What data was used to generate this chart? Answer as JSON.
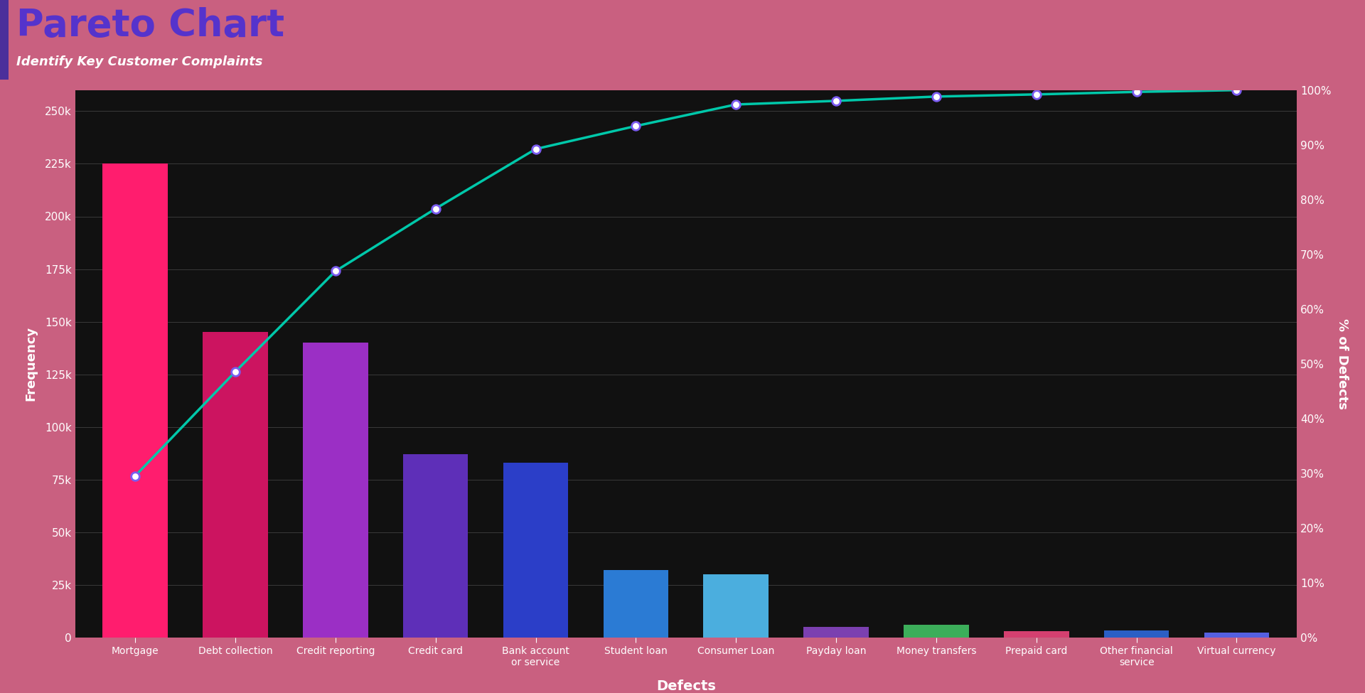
{
  "categories": [
    "Mortgage",
    "Debt collection",
    "Credit reporting",
    "Credit card",
    "Bank account\nor service",
    "Student loan",
    "Consumer Loan",
    "Payday loan",
    "Money transfers",
    "Prepaid card",
    "Other financial\nservice",
    "Virtual currency"
  ],
  "values": [
    225000,
    145000,
    140000,
    87000,
    83000,
    32000,
    30000,
    5000,
    6000,
    3000,
    3500,
    2500
  ],
  "bar_colors": [
    "#FF1D6E",
    "#CC1460",
    "#9B2FC5",
    "#5E2FB8",
    "#2B3EC8",
    "#2B7BD4",
    "#4BAEDE",
    "#7B40B0",
    "#3CAE5A",
    "#D44070",
    "#2B5FC5",
    "#5560E0"
  ],
  "line_color": "#00C8AA",
  "marker_face": "#FFFFFF",
  "marker_edge": "#7B5CF0",
  "title": "Pareto Chart",
  "subtitle": "Identify Key Customer Complaints",
  "xlabel": "Defects",
  "ylabel": "Frequency",
  "ylabel_right": "% of Defects",
  "bg_color": "#111111",
  "header_bg": "#C96080",
  "title_color": "#5533CC",
  "subtitle_color": "#FFFFFF",
  "axis_label_color": "#FFFFFF",
  "tick_color": "#FFFFFF",
  "grid_color": "#444444",
  "ylim_left": [
    0,
    260000
  ],
  "yticks_left": [
    0,
    25000,
    50000,
    75000,
    100000,
    125000,
    150000,
    175000,
    200000,
    225000,
    250000
  ],
  "ytick_labels_left": [
    "0",
    "25k",
    "50k",
    "75k",
    "100k",
    "125k",
    "150k",
    "175k",
    "200k",
    "225k",
    "250k"
  ],
  "yticks_right_pct": [
    0,
    10,
    20,
    30,
    40,
    50,
    60,
    70,
    80,
    90,
    100
  ],
  "ytick_labels_right": [
    "0%",
    "10%",
    "20%",
    "30%",
    "40%",
    "50%",
    "60%",
    "70%",
    "80%",
    "90%",
    "100%"
  ]
}
